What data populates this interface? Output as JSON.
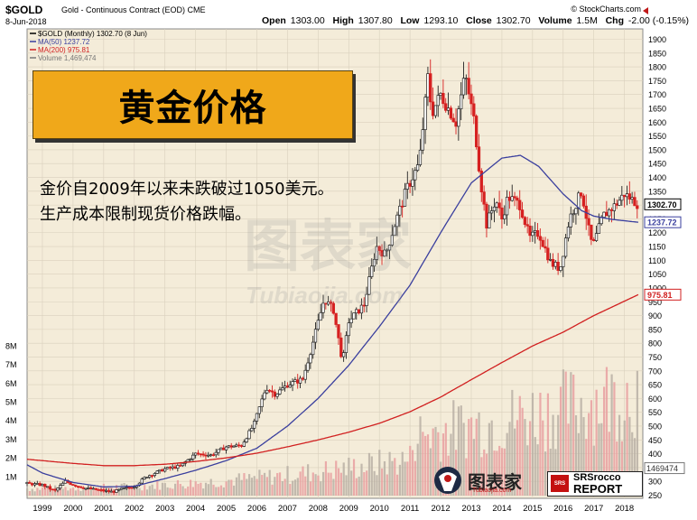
{
  "header": {
    "ticker": "$GOLD",
    "ticker_desc": "Gold - Continuous Contract (EOD)  CME",
    "copyright": "© StockCharts.com",
    "date": "8-Jun-2018",
    "open_label": "Open",
    "open": "1303.00",
    "high_label": "High",
    "high": "1307.80",
    "low_label": "Low",
    "low": "1293.10",
    "close_label": "Close",
    "close": "1302.70",
    "volume_label": "Volume",
    "volume": "1.5M",
    "chg_label": "Chg",
    "chg": "-2.00 (-0.15%)"
  },
  "legend": {
    "price": "$GOLD (Monthly) 1302.70 (8 Jun)",
    "ma50": "MA(50) 1237.72",
    "ma200": "MA(200) 975.81",
    "volume": "Volume 1,469,474"
  },
  "title": "黄金价格",
  "caption": "金价自2009年以来未跌破过1050美元。生产成本限制现货价格跌幅。",
  "watermark": {
    "cn": "图表家",
    "en": "Tubiaojia.com"
  },
  "brand": {
    "name": "图表家",
    "url": "Tubiaojia.com"
  },
  "srs": {
    "line1": "SRSrocco",
    "line2": "REPORT",
    "logo": "SRS"
  },
  "price_tags": {
    "close": "1302.70",
    "ma50": "1237.72",
    "ma200": "975.81"
  },
  "volume_tag": "1469474",
  "colors": {
    "bg_outer": "#ffffff",
    "plot_bg": "#f4ecd9",
    "grid": "#d9d0bd",
    "up": "#222222",
    "down": "#d62020",
    "ma50": "#3a3f9e",
    "ma200": "#d12020",
    "title_box": "#f0a81a"
  },
  "chart_data": {
    "type": "candlestick",
    "title": "$GOLD (Monthly)",
    "price_axis": {
      "ticks": [
        250,
        300,
        350,
        400,
        450,
        500,
        550,
        600,
        650,
        700,
        750,
        800,
        850,
        900,
        950,
        1000,
        1050,
        1100,
        1150,
        1200,
        1250,
        1300,
        1350,
        1400,
        1450,
        1500,
        1550,
        1600,
        1650,
        1700,
        1750,
        1800,
        1850,
        1900
      ],
      "range": [
        230,
        1930
      ]
    },
    "volume_axis": {
      "ticks": [
        "1M",
        "2M",
        "3M",
        "4M",
        "5M",
        "6M",
        "7M",
        "8M"
      ],
      "range": [
        0,
        8.5
      ],
      "unit": "M"
    },
    "x_axis": {
      "labels": [
        "1999",
        "2000",
        "2001",
        "2002",
        "2003",
        "2004",
        "2005",
        "2006",
        "2007",
        "2008",
        "2009",
        "2010",
        "2011",
        "2012",
        "2013",
        "2014",
        "2015",
        "2016",
        "2017",
        "2018"
      ]
    },
    "price_path": [
      [
        "1998.5",
        292
      ],
      [
        "1999.0",
        287
      ],
      [
        "1999.4",
        265
      ],
      [
        "1999.75",
        300
      ],
      [
        "2000.0",
        288
      ],
      [
        "2000.4",
        275
      ],
      [
        "2000.75",
        270
      ],
      [
        "2001.0",
        266
      ],
      [
        "2001.3",
        262
      ],
      [
        "2001.6",
        272
      ],
      [
        "2002.0",
        282
      ],
      [
        "2002.4",
        318
      ],
      [
        "2003.0",
        345
      ],
      [
        "2003.5",
        355
      ],
      [
        "2004.0",
        400
      ],
      [
        "2004.5",
        395
      ],
      [
        "2005.0",
        425
      ],
      [
        "2005.5",
        430
      ],
      [
        "2005.9",
        505
      ],
      [
        "2006.3",
        640
      ],
      [
        "2006.6",
        615
      ],
      [
        "2007.0",
        650
      ],
      [
        "2007.5",
        670
      ],
      [
        "2007.8",
        790
      ],
      [
        "2008.2",
        960
      ],
      [
        "2008.5",
        920
      ],
      [
        "2008.8",
        730
      ],
      [
        "2009.0",
        880
      ],
      [
        "2009.5",
        940
      ],
      [
        "2009.9",
        1150
      ],
      [
        "2010.2",
        1120
      ],
      [
        "2010.5",
        1230
      ],
      [
        "2010.9",
        1360
      ],
      [
        "2011.3",
        1450
      ],
      [
        "2011.6",
        1780
      ],
      [
        "2011.7",
        1630
      ],
      [
        "2012.0",
        1700
      ],
      [
        "2012.5",
        1600
      ],
      [
        "2012.8",
        1770
      ],
      [
        "2013.1",
        1600
      ],
      [
        "2013.3",
        1390
      ],
      [
        "2013.5",
        1230
      ],
      [
        "2013.8",
        1320
      ],
      [
        "2014.0",
        1250
      ],
      [
        "2014.2",
        1330
      ],
      [
        "2014.6",
        1300
      ],
      [
        "2014.9",
        1180
      ],
      [
        "2015.2",
        1200
      ],
      [
        "2015.6",
        1090
      ],
      [
        "2015.9",
        1070
      ],
      [
        "2016.2",
        1250
      ],
      [
        "2016.6",
        1350
      ],
      [
        "2016.9",
        1170
      ],
      [
        "2017.0",
        1160
      ],
      [
        "2017.3",
        1260
      ],
      [
        "2017.7",
        1300
      ],
      [
        "2018.0",
        1340
      ],
      [
        "2018.25",
        1320
      ],
      [
        "2018.45",
        1302.7
      ]
    ],
    "ma50_path": [
      [
        "1998.5",
        360
      ],
      [
        "1999.0",
        330
      ],
      [
        "2000.0",
        296
      ],
      [
        "2001.0",
        280
      ],
      [
        "2002.0",
        282
      ],
      [
        "2003.0",
        310
      ],
      [
        "2004.0",
        340
      ],
      [
        "2005.0",
        375
      ],
      [
        "2006.0",
        420
      ],
      [
        "2007.0",
        500
      ],
      [
        "2008.0",
        600
      ],
      [
        "2009.0",
        720
      ],
      [
        "2010.0",
        860
      ],
      [
        "2011.0",
        1010
      ],
      [
        "2012.0",
        1200
      ],
      [
        "2013.0",
        1380
      ],
      [
        "2014.0",
        1470
      ],
      [
        "2014.6",
        1480
      ],
      [
        "2015.2",
        1440
      ],
      [
        "2016.0",
        1340
      ],
      [
        "2016.6",
        1280
      ],
      [
        "2017.0",
        1260
      ],
      [
        "2017.6",
        1248
      ],
      [
        "2018.45",
        1237.72
      ]
    ],
    "ma200_path": [
      [
        "1998.5",
        380
      ],
      [
        "1999.0",
        375
      ],
      [
        "2000.0",
        365
      ],
      [
        "2001.0",
        357
      ],
      [
        "2002.0",
        357
      ],
      [
        "2003.0",
        362
      ],
      [
        "2004.0",
        372
      ],
      [
        "2005.0",
        385
      ],
      [
        "2006.0",
        402
      ],
      [
        "2007.0",
        425
      ],
      [
        "2008.0",
        450
      ],
      [
        "2009.0",
        478
      ],
      [
        "2010.0",
        510
      ],
      [
        "2011.0",
        552
      ],
      [
        "2012.0",
        605
      ],
      [
        "2013.0",
        668
      ],
      [
        "2014.0",
        730
      ],
      [
        "2015.0",
        790
      ],
      [
        "2016.0",
        840
      ],
      [
        "2017.0",
        900
      ],
      [
        "2018.45",
        975.81
      ]
    ],
    "series": [
      {
        "name": "MA(50)",
        "last": 1237.72
      },
      {
        "name": "MA(200)",
        "last": 975.81
      },
      {
        "name": "Volume",
        "last": 1469474
      }
    ]
  }
}
